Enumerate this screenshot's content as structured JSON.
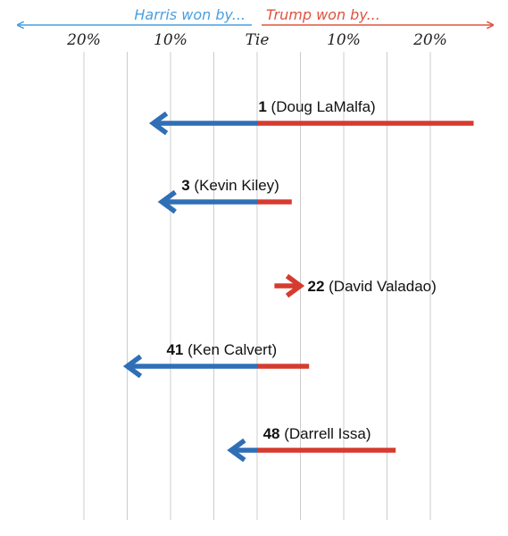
{
  "chart_data": {
    "type": "arrow",
    "title": "",
    "xlabel": "",
    "ylabel": "",
    "header": {
      "left": "Harris won by...",
      "right": "Trump won by..."
    },
    "xlim": [
      -30,
      30
    ],
    "x_ticks": [
      {
        "value": -20,
        "label": "20%"
      },
      {
        "value": -10,
        "label": "10%"
      },
      {
        "value": 0,
        "label": "Tie"
      },
      {
        "value": 10,
        "label": "10%"
      },
      {
        "value": 20,
        "label": "20%"
      }
    ],
    "grid": true,
    "colors": {
      "harris": "#2f6fb6",
      "trump": "#d63b2f",
      "harris_header": "#4a9fe0",
      "trump_header": "#e0533f",
      "grid": "#cccccc"
    },
    "series": [
      {
        "number": "1",
        "name": "(Doug LaMalfa)",
        "from": 25,
        "to": -12
      },
      {
        "number": "3",
        "name": "(Kevin Kiley)",
        "from": 4,
        "to": -11
      },
      {
        "number": "22",
        "name": "(David Valadao)",
        "from": 2,
        "to": 5
      },
      {
        "number": "41",
        "name": "(Ken Calvert)",
        "from": 6,
        "to": -15
      },
      {
        "number": "48",
        "name": "(Darrell Issa)",
        "from": 16,
        "to": -3
      }
    ]
  }
}
